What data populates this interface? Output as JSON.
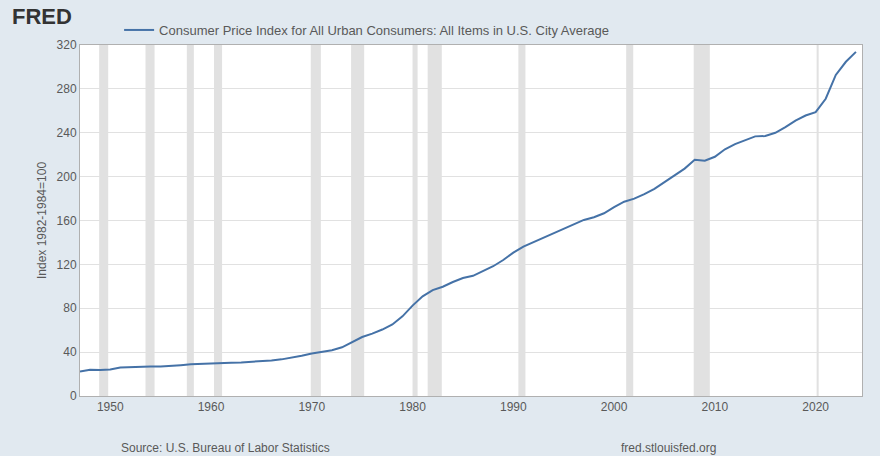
{
  "chart_data": {
    "type": "line",
    "logo_text": "FRED",
    "y_label": "Index 1982-1984=100",
    "source": "Source: U.S. Bureau of Labor Statistics",
    "credit": "fred.stlouisfed.org",
    "legend": "top",
    "grid": true,
    "x": [
      1947,
      1948,
      1949,
      1950,
      1951,
      1952,
      1953,
      1954,
      1955,
      1956,
      1957,
      1958,
      1959,
      1960,
      1961,
      1962,
      1963,
      1964,
      1965,
      1966,
      1967,
      1968,
      1969,
      1970,
      1971,
      1972,
      1973,
      1974,
      1975,
      1976,
      1977,
      1978,
      1979,
      1980,
      1981,
      1982,
      1983,
      1984,
      1985,
      1986,
      1987,
      1988,
      1989,
      1990,
      1991,
      1992,
      1993,
      1994,
      1995,
      1996,
      1997,
      1998,
      1999,
      2000,
      2001,
      2002,
      2003,
      2004,
      2005,
      2006,
      2007,
      2008,
      2009,
      2010,
      2011,
      2012,
      2013,
      2014,
      2015,
      2016,
      2017,
      2018,
      2019,
      2020,
      2021,
      2022,
      2023,
      2024
    ],
    "series": [
      {
        "name": "Consumer Price Index for All Urban Consumers: All Items in U.S. City Average",
        "color": "#4572a7",
        "values": [
          22.3,
          24.0,
          23.8,
          24.1,
          26.0,
          26.5,
          26.7,
          26.9,
          26.8,
          27.2,
          28.1,
          28.9,
          29.1,
          29.6,
          29.9,
          30.2,
          30.6,
          31.0,
          31.5,
          32.4,
          33.4,
          34.8,
          36.7,
          38.8,
          40.5,
          41.8,
          44.4,
          49.3,
          53.8,
          56.9,
          60.6,
          65.2,
          72.6,
          82.4,
          90.9,
          96.5,
          99.6,
          103.9,
          107.6,
          109.6,
          113.6,
          118.3,
          124.0,
          130.7,
          136.2,
          140.3,
          144.5,
          148.2,
          152.4,
          156.9,
          160.5,
          163.0,
          166.6,
          172.2,
          177.1,
          179.9,
          184.0,
          188.9,
          195.3,
          201.6,
          207.3,
          215.3,
          214.5,
          218.1,
          224.9,
          229.6,
          233.0,
          236.7,
          237.0,
          240.0,
          245.1,
          251.1,
          255.7,
          258.8,
          271.0,
          292.7,
          304.7,
          313.7
        ]
      }
    ],
    "recessions": [
      [
        1948.9,
        1949.8
      ],
      [
        1953.5,
        1954.4
      ],
      [
        1957.6,
        1958.3
      ],
      [
        1960.3,
        1961.1
      ],
      [
        1969.9,
        1970.9
      ],
      [
        1973.9,
        1975.2
      ],
      [
        1980.0,
        1980.5
      ],
      [
        1981.5,
        1982.9
      ],
      [
        1990.5,
        1991.2
      ],
      [
        2001.2,
        2001.9
      ],
      [
        2007.9,
        2009.5
      ],
      [
        2020.1,
        2020.3
      ]
    ],
    "xlim": [
      1947,
      2024.6
    ],
    "xticks": [
      1950,
      1960,
      1970,
      1980,
      1990,
      2000,
      2010,
      2020
    ],
    "ylim": [
      0,
      320
    ],
    "yticks": [
      0,
      40,
      80,
      120,
      160,
      200,
      240,
      280,
      320
    ]
  }
}
